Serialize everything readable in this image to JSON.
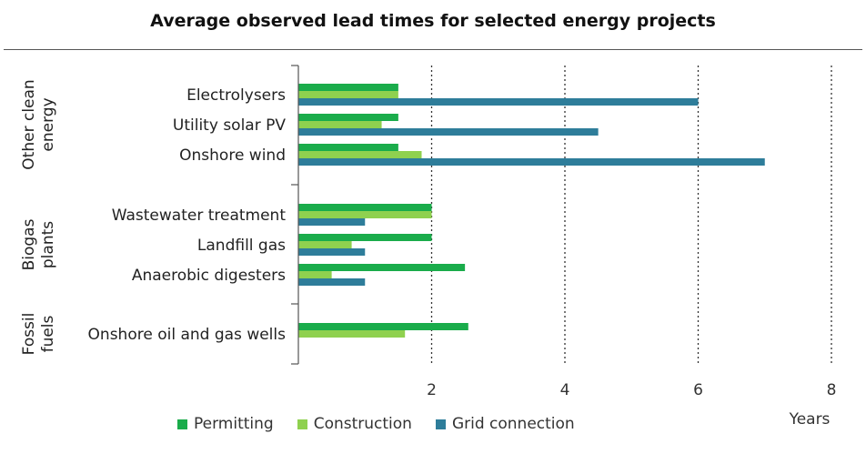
{
  "title": "Average observed lead times for selected energy projects",
  "chart_data": {
    "type": "bar",
    "orientation": "horizontal",
    "title": "Average observed lead times for selected energy projects",
    "xlabel": "Years",
    "ylabel": "",
    "xlim": [
      0,
      8
    ],
    "xticks": [
      2,
      4,
      6,
      8
    ],
    "grid": "vertical dotted lines at x ticks",
    "legend_position": "bottom",
    "groups": [
      {
        "name": "Other clean energy",
        "name_lines": [
          "Other clean",
          "energy"
        ],
        "categories": [
          "Electrolysers",
          "Utility solar PV",
          "Onshore wind"
        ]
      },
      {
        "name": "Biogas plants",
        "name_lines": [
          "Biogas",
          "plants"
        ],
        "categories": [
          "Wastewater treatment",
          "Landfill gas",
          "Anaerobic digesters"
        ]
      },
      {
        "name": "Fossil fuels",
        "name_lines": [
          "Fossil",
          "fuels"
        ],
        "categories": [
          "Onshore oil and gas wells"
        ]
      }
    ],
    "categories": [
      "Electrolysers",
      "Utility solar PV",
      "Onshore wind",
      "Wastewater treatment",
      "Landfill gas",
      "Anaerobic digesters",
      "Onshore oil and gas wells"
    ],
    "series": [
      {
        "name": "Permitting",
        "color": "#1aac4b",
        "values": [
          1.5,
          1.5,
          1.5,
          2.0,
          2.0,
          2.5,
          2.55
        ]
      },
      {
        "name": "Construction",
        "color": "#8fd14f",
        "values": [
          1.5,
          1.25,
          1.85,
          2.0,
          0.8,
          0.5,
          1.6
        ]
      },
      {
        "name": "Grid connection",
        "color": "#2e7d9a",
        "values": [
          6.0,
          4.5,
          7.0,
          1.0,
          1.0,
          1.0,
          null
        ]
      }
    ]
  }
}
